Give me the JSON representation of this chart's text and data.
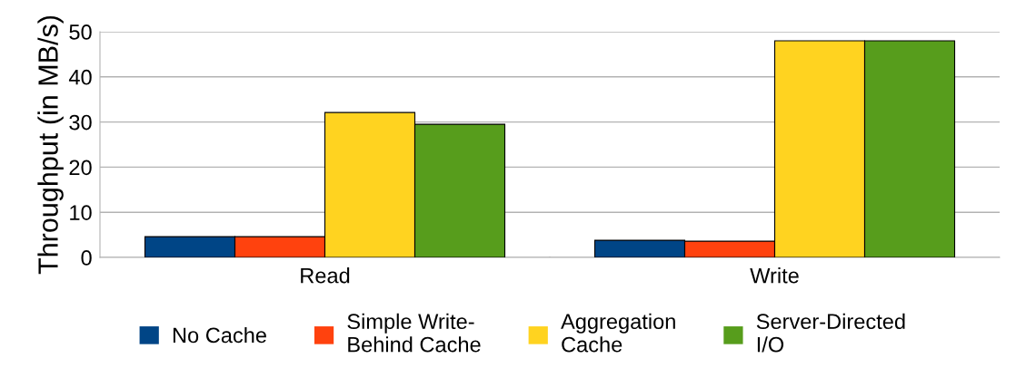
{
  "chart_data": {
    "type": "bar",
    "ylabel": "Throughput (in MB/s)",
    "categories": [
      "Read",
      "Write"
    ],
    "series": [
      {
        "name": "No Cache",
        "color": "#004586",
        "values": [
          4.6,
          3.8
        ]
      },
      {
        "name": "Simple Write-\nBehind Cache",
        "color": "#ff420e",
        "values": [
          4.6,
          3.6
        ]
      },
      {
        "name": "Aggregation\nCache",
        "color": "#ffd320",
        "values": [
          32.1,
          48
        ]
      },
      {
        "name": "Server-Directed\nI/O",
        "color": "#579d1c",
        "values": [
          29.5,
          48
        ]
      }
    ],
    "ylim": [
      0,
      50
    ],
    "yticks": [
      0,
      10,
      20,
      30,
      40,
      50
    ],
    "grid": "y",
    "legend": "bottom"
  }
}
